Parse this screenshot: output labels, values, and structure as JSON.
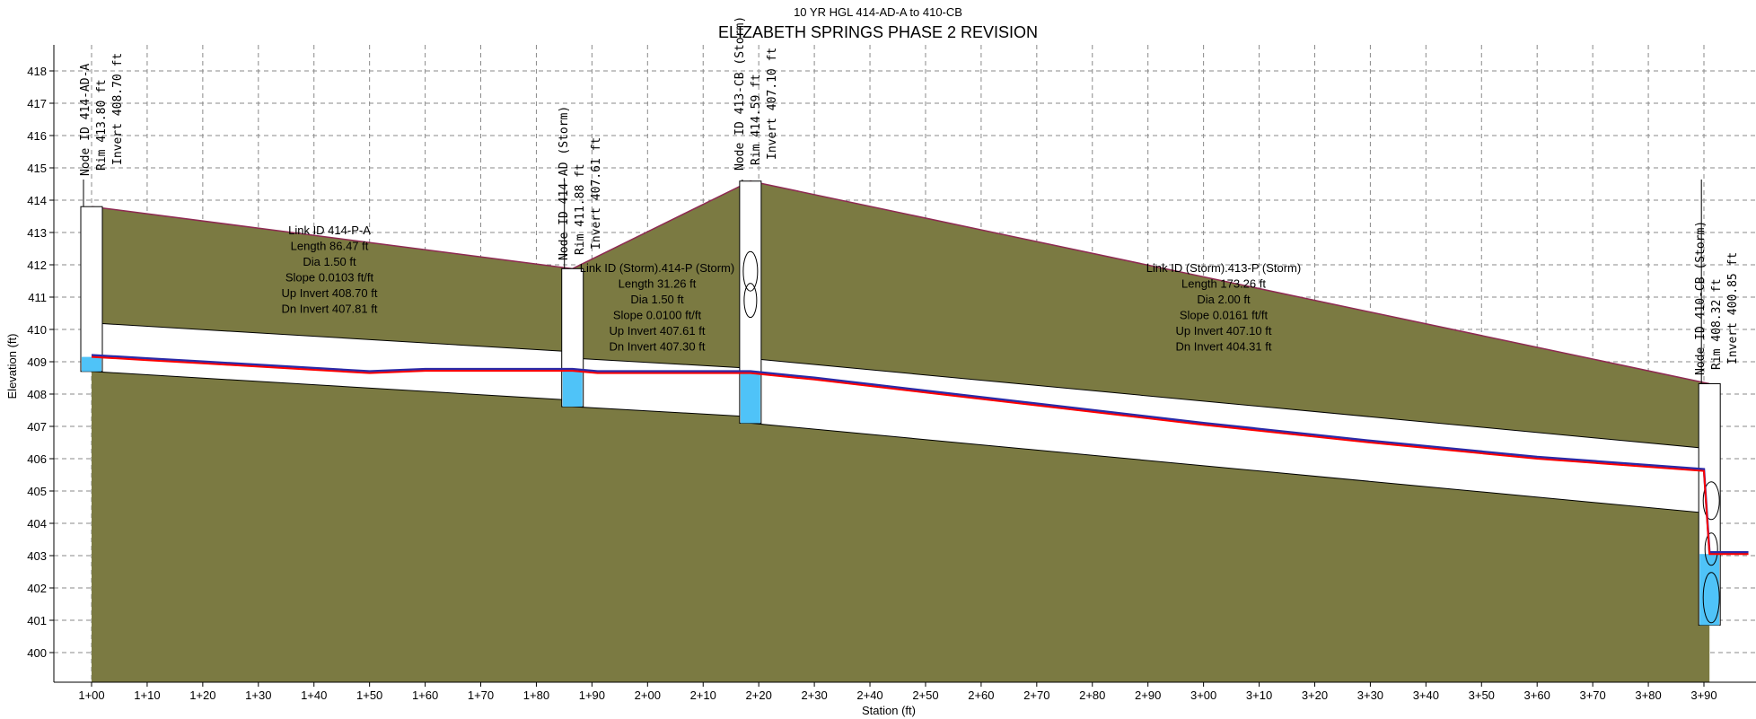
{
  "chart_data": {
    "type": "area",
    "subtitle": "10 YR HGL 414-AD-A to 410-CB",
    "title": "ELIZABETH SPRINGS PHASE 2 REVISION",
    "xlabel": "Station (ft)",
    "ylabel": "Elevation (ft)",
    "xlim": [
      98.5,
      398
    ],
    "ylim": [
      399.5,
      418.5
    ],
    "grid": true,
    "x_ticks": [
      "1+00",
      "1+10",
      "1+20",
      "1+30",
      "1+40",
      "1+50",
      "1+60",
      "1+70",
      "1+80",
      "1+90",
      "2+00",
      "2+10",
      "2+20",
      "2+30",
      "2+40",
      "2+50",
      "2+60",
      "2+70",
      "2+80",
      "2+90",
      "3+00",
      "3+10",
      "3+20",
      "3+30",
      "3+40",
      "3+50",
      "3+60",
      "3+70",
      "3+80",
      "3+90"
    ],
    "x_tick_values": [
      100,
      110,
      120,
      130,
      140,
      150,
      160,
      170,
      180,
      190,
      200,
      210,
      220,
      230,
      240,
      250,
      260,
      270,
      280,
      290,
      300,
      310,
      320,
      330,
      340,
      350,
      360,
      370,
      380,
      390
    ],
    "y_ticks": [
      400,
      401,
      402,
      403,
      404,
      405,
      406,
      407,
      408,
      409,
      410,
      411,
      412,
      413,
      414,
      415,
      416,
      417,
      418
    ],
    "colors": {
      "ground": "#7b7a42",
      "water": "#4fc3f8",
      "hgl": "#ff0000",
      "egl": "#2a2aa8",
      "pipe": "#ffffff",
      "grid": "#8a8a8a"
    },
    "ground_profile": {
      "x": [
        100,
        186.5,
        218.5,
        391
      ],
      "y": [
        413.8,
        411.88,
        414.59,
        408.32
      ]
    },
    "nodes": [
      {
        "station": 100,
        "rim": 413.8,
        "invert": 408.7,
        "lines": [
          "Node ID 414-AD-A",
          "Rim 413.80 ft",
          "Invert 408.70 ft"
        ]
      },
      {
        "station": 186.5,
        "rim": 411.88,
        "invert": 407.61,
        "lines": [
          "Node ID 414-AD (Storm)",
          "Rim 411.88 ft",
          "Invert 407.61 ft"
        ]
      },
      {
        "station": 218.5,
        "rim": 414.59,
        "invert": 407.1,
        "lines": [
          "Node ID 413-CB (Storm)",
          "Rim 414.59 ft",
          "Invert 407.10 ft"
        ]
      },
      {
        "station": 391,
        "rim": 408.32,
        "invert": 400.85,
        "lines": [
          "Node ID 410-CB (Storm)",
          "Rim 408.32 ft",
          "Invert 400.85 ft"
        ]
      }
    ],
    "links": [
      {
        "from": 100,
        "to": 186.5,
        "up_invert": 408.7,
        "dn_invert": 407.81,
        "dia": 1.5,
        "lines": [
          "Link ID 414-P-A",
          "Length 86.47 ft",
          "Dia 1.50 ft",
          "Slope 0.0103 ft/ft",
          "Up Invert 408.70 ft",
          "Dn Invert 407.81 ft"
        ]
      },
      {
        "from": 186.5,
        "to": 218.5,
        "up_invert": 407.61,
        "dn_invert": 407.3,
        "dia": 1.5,
        "lines": [
          "Link ID (Storm).414-P (Storm)",
          "Length 31.26 ft",
          "Dia 1.50 ft",
          "Slope 0.0100 ft/ft",
          "Up Invert 407.61 ft",
          "Dn Invert 407.30 ft"
        ]
      },
      {
        "from": 218.5,
        "to": 391,
        "up_invert": 407.1,
        "dn_invert": 404.31,
        "dia": 2.0,
        "lines": [
          "Link ID (Storm).413-P (Storm)",
          "Length 173.26 ft",
          "Dia 2.00 ft",
          "Slope 0.0161 ft/ft",
          "Up Invert 407.10 ft",
          "Dn Invert 404.31 ft"
        ]
      }
    ],
    "hgl": {
      "x": [
        100,
        110,
        120,
        130,
        140,
        150,
        160,
        170,
        180,
        186.5,
        191,
        218.5,
        230,
        250,
        270,
        300,
        330,
        360,
        390,
        391,
        392,
        398
      ],
      "y": [
        409.15,
        409.05,
        408.95,
        408.85,
        408.75,
        408.65,
        408.72,
        408.72,
        408.72,
        408.72,
        408.65,
        408.65,
        408.45,
        408.05,
        407.65,
        407.05,
        406.5,
        406.0,
        405.62,
        403.05,
        403.05,
        403.05
      ]
    }
  }
}
